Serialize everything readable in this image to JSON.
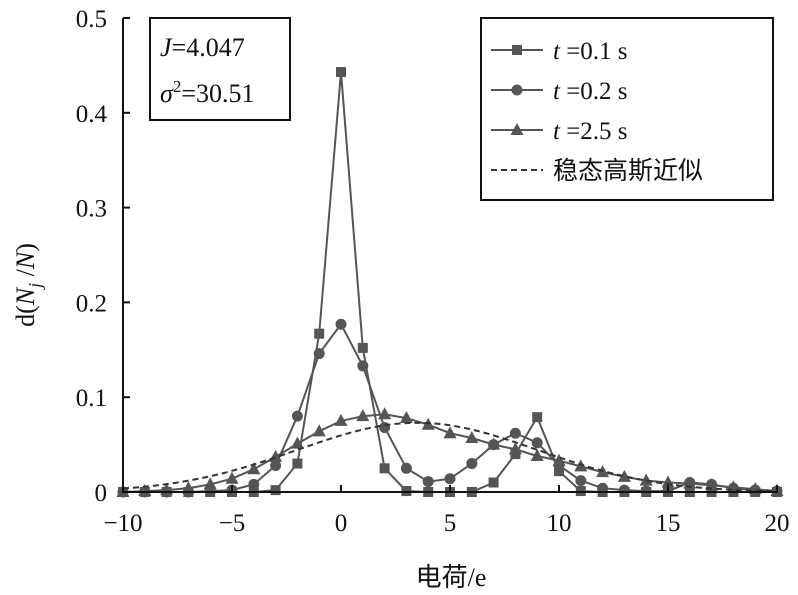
{
  "chart_data": {
    "type": "line",
    "xlabel": "电荷/e",
    "ylabel": "d(N_j /N)",
    "ylabel_parts": {
      "open": "d(",
      "N": "N",
      "sub": "j",
      "rest": " /",
      "N2": "N",
      "close": ")"
    },
    "xlim": [
      -10,
      20
    ],
    "ylim": [
      0,
      0.5
    ],
    "xticks": [
      -10,
      -5,
      0,
      5,
      10,
      15,
      20
    ],
    "xtick_labels": [
      "−10",
      "−5",
      "0",
      "5",
      "10",
      "15",
      "20"
    ],
    "yticks": [
      0,
      0.1,
      0.2,
      0.3,
      0.4,
      0.5
    ],
    "ytick_labels": [
      "0",
      "0.1",
      "0.2",
      "0.3",
      "0.4",
      "0.5"
    ],
    "grid": false,
    "legend_position": "top-right",
    "info_box": {
      "line1": {
        "var": "J",
        "value": "=4.047"
      },
      "line2": {
        "var": "σ",
        "sup": "2",
        "value": "=30.51"
      }
    },
    "series": [
      {
        "name": "t =0.1 s",
        "name_var": "t",
        "name_rest": " =0.1 s",
        "marker": "square",
        "x": [
          -10,
          -9,
          -8,
          -7,
          -6,
          -5,
          -4,
          -3,
          -2,
          -1,
          0,
          1,
          2,
          3,
          4,
          5,
          6,
          7,
          8,
          9,
          10,
          11,
          12,
          13,
          14,
          15,
          16,
          17,
          18,
          19,
          20
        ],
        "y": [
          0,
          0,
          0,
          0,
          0,
          0,
          0,
          0.002,
          0.03,
          0.167,
          0.443,
          0.152,
          0.025,
          0.001,
          0,
          0,
          0,
          0.01,
          0.04,
          0.079,
          0.022,
          0.001,
          0,
          0,
          0,
          0,
          0,
          0,
          0,
          0,
          0
        ]
      },
      {
        "name": "t =0.2 s",
        "name_var": "t",
        "name_rest": " =0.2 s",
        "marker": "circle",
        "x": [
          -10,
          -9,
          -8,
          -7,
          -6,
          -5,
          -4,
          -3,
          -2,
          -1,
          0,
          1,
          2,
          3,
          4,
          5,
          6,
          7,
          8,
          9,
          10,
          11,
          12,
          13,
          14,
          15,
          16,
          17,
          18,
          19,
          20
        ],
        "y": [
          0,
          0,
          0,
          0,
          0.001,
          0.002,
          0.008,
          0.028,
          0.08,
          0.146,
          0.177,
          0.133,
          0.068,
          0.025,
          0.011,
          0.014,
          0.03,
          0.05,
          0.062,
          0.052,
          0.028,
          0.012,
          0.004,
          0.002,
          0.001,
          0.001,
          0.01,
          0.008,
          0.004,
          0.002,
          0.001
        ]
      },
      {
        "name": "t =2.5 s",
        "name_var": "t",
        "name_rest": " =2.5 s",
        "marker": "triangle",
        "x": [
          -10,
          -9,
          -8,
          -7,
          -6,
          -5,
          -4,
          -3,
          -2,
          -1,
          0,
          1,
          2,
          3,
          4,
          5,
          6,
          7,
          8,
          9,
          10,
          11,
          12,
          13,
          14,
          15,
          16,
          17,
          18,
          19,
          20
        ],
        "y": [
          0,
          0.001,
          0.002,
          0.004,
          0.008,
          0.014,
          0.024,
          0.037,
          0.051,
          0.064,
          0.075,
          0.08,
          0.082,
          0.078,
          0.071,
          0.062,
          0.057,
          0.05,
          0.045,
          0.038,
          0.033,
          0.027,
          0.021,
          0.016,
          0.012,
          0.01,
          0.009,
          0.007,
          0.005,
          0.003,
          0.001
        ]
      },
      {
        "name": "稳态高斯近似",
        "name_var": "",
        "name_rest": "稳态高斯近似",
        "marker": "none",
        "dashed": true,
        "gaussian": {
          "mean": 3.5,
          "sigma2": 30.51,
          "peak": 0.073
        }
      }
    ]
  }
}
